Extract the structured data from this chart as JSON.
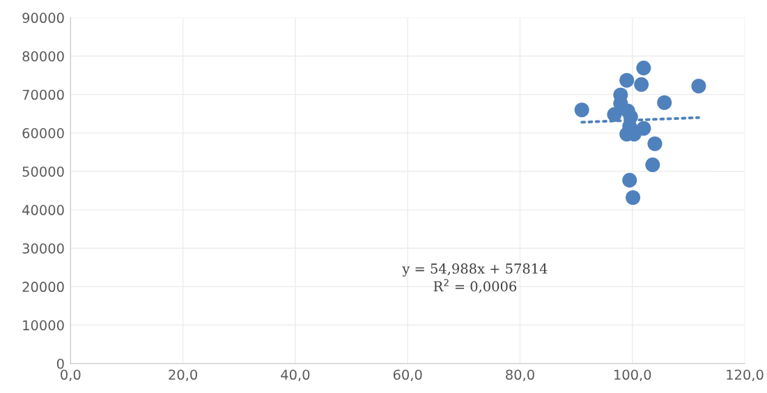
{
  "chart_data": {
    "type": "scatter",
    "xlim": [
      0,
      120
    ],
    "ylim": [
      0,
      90000
    ],
    "xticks": [
      {
        "value": 0,
        "label": "0,0"
      },
      {
        "value": 20,
        "label": "20,0"
      },
      {
        "value": 40,
        "label": "40,0"
      },
      {
        "value": 60,
        "label": "60,0"
      },
      {
        "value": 80,
        "label": "80,0"
      },
      {
        "value": 100,
        "label": "100,0"
      },
      {
        "value": 120,
        "label": "120,0"
      }
    ],
    "yticks": [
      0,
      10000,
      20000,
      30000,
      40000,
      50000,
      60000,
      70000,
      80000,
      90000
    ],
    "grid": true,
    "series": [
      {
        "color": "#4f81bd",
        "marker": "circle",
        "x": [
          91.0,
          96.8,
          97.9,
          97.9,
          99.0,
          102.0,
          101.6,
          111.8,
          105.7,
          99.2,
          99.7,
          99.5,
          102.0,
          99.0,
          100.3,
          104.0,
          103.6,
          99.5,
          100.1
        ],
        "values": [
          66000,
          64800,
          69900,
          67700,
          73700,
          76900,
          72600,
          72200,
          67900,
          65700,
          64200,
          61700,
          61200,
          59700,
          59700,
          57200,
          51700,
          47700,
          43200
        ]
      },
      {
        "type": "line",
        "color": "#4f81bd",
        "line_style": "dotted",
        "x": [
          91.0,
          111.8
        ],
        "values": [
          62800,
          64000
        ]
      }
    ],
    "annotations": [
      "y = 54,988x + 57814\nR$^{2}$ = 0,0006"
    ]
  }
}
